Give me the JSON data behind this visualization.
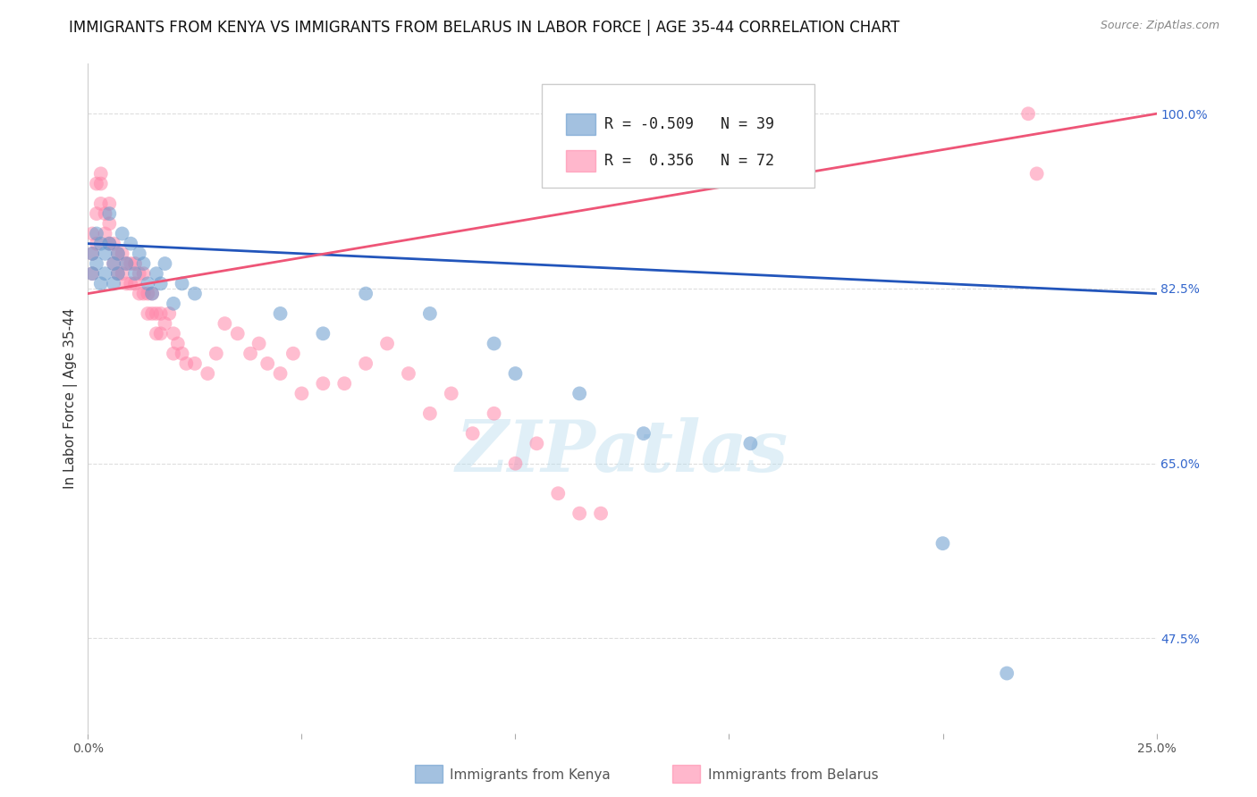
{
  "title": "IMMIGRANTS FROM KENYA VS IMMIGRANTS FROM BELARUS IN LABOR FORCE | AGE 35-44 CORRELATION CHART",
  "source": "Source: ZipAtlas.com",
  "ylabel": "In Labor Force | Age 35-44",
  "xlim": [
    0.0,
    0.25
  ],
  "ylim": [
    0.38,
    1.05
  ],
  "xtick_positions": [
    0.0,
    0.05,
    0.1,
    0.15,
    0.2,
    0.25
  ],
  "xtick_labels": [
    "0.0%",
    "",
    "",
    "",
    "",
    "25.0%"
  ],
  "ytick_vals_right": [
    0.475,
    0.65,
    0.825,
    1.0
  ],
  "ytick_labels_right": [
    "47.5%",
    "65.0%",
    "82.5%",
    "100.0%"
  ],
  "kenya_R": -0.509,
  "kenya_N": 39,
  "belarus_R": 0.356,
  "belarus_N": 72,
  "kenya_color": "#6699CC",
  "belarus_color": "#FF88AA",
  "kenya_line_color": "#2255BB",
  "belarus_line_color": "#EE5577",
  "kenya_x": [
    0.001,
    0.001,
    0.002,
    0.002,
    0.003,
    0.003,
    0.004,
    0.004,
    0.005,
    0.005,
    0.006,
    0.006,
    0.007,
    0.007,
    0.008,
    0.009,
    0.01,
    0.011,
    0.012,
    0.013,
    0.014,
    0.015,
    0.016,
    0.017,
    0.018,
    0.02,
    0.022,
    0.025,
    0.045,
    0.055,
    0.065,
    0.08,
    0.095,
    0.1,
    0.115,
    0.13,
    0.155,
    0.2,
    0.215
  ],
  "kenya_y": [
    0.86,
    0.84,
    0.88,
    0.85,
    0.87,
    0.83,
    0.86,
    0.84,
    0.9,
    0.87,
    0.85,
    0.83,
    0.86,
    0.84,
    0.88,
    0.85,
    0.87,
    0.84,
    0.86,
    0.85,
    0.83,
    0.82,
    0.84,
    0.83,
    0.85,
    0.81,
    0.83,
    0.82,
    0.8,
    0.78,
    0.82,
    0.8,
    0.77,
    0.74,
    0.72,
    0.68,
    0.67,
    0.57,
    0.44
  ],
  "belarus_x": [
    0.001,
    0.001,
    0.001,
    0.002,
    0.002,
    0.002,
    0.003,
    0.003,
    0.003,
    0.004,
    0.004,
    0.005,
    0.005,
    0.005,
    0.006,
    0.006,
    0.007,
    0.007,
    0.008,
    0.008,
    0.009,
    0.009,
    0.01,
    0.01,
    0.011,
    0.011,
    0.012,
    0.012,
    0.013,
    0.013,
    0.014,
    0.014,
    0.015,
    0.015,
    0.016,
    0.016,
    0.017,
    0.017,
    0.018,
    0.019,
    0.02,
    0.02,
    0.021,
    0.022,
    0.023,
    0.025,
    0.028,
    0.03,
    0.032,
    0.035,
    0.038,
    0.04,
    0.042,
    0.045,
    0.048,
    0.05,
    0.055,
    0.06,
    0.065,
    0.07,
    0.075,
    0.08,
    0.085,
    0.09,
    0.095,
    0.1,
    0.105,
    0.11,
    0.115,
    0.12,
    0.22,
    0.222
  ],
  "belarus_y": [
    0.84,
    0.86,
    0.88,
    0.87,
    0.9,
    0.93,
    0.91,
    0.93,
    0.94,
    0.9,
    0.88,
    0.87,
    0.89,
    0.91,
    0.85,
    0.87,
    0.84,
    0.86,
    0.84,
    0.86,
    0.83,
    0.85,
    0.83,
    0.85,
    0.83,
    0.85,
    0.84,
    0.82,
    0.84,
    0.82,
    0.8,
    0.82,
    0.8,
    0.82,
    0.8,
    0.78,
    0.8,
    0.78,
    0.79,
    0.8,
    0.78,
    0.76,
    0.77,
    0.76,
    0.75,
    0.75,
    0.74,
    0.76,
    0.79,
    0.78,
    0.76,
    0.77,
    0.75,
    0.74,
    0.76,
    0.72,
    0.73,
    0.73,
    0.75,
    0.77,
    0.74,
    0.7,
    0.72,
    0.68,
    0.7,
    0.65,
    0.67,
    0.62,
    0.6,
    0.6,
    1.0,
    0.94
  ],
  "kenya_trend_y0": 0.87,
  "kenya_trend_y1": 0.82,
  "belarus_trend_y0": 0.82,
  "belarus_trend_y1": 1.0,
  "watermark": "ZIPatlas",
  "background_color": "#ffffff",
  "grid_color": "#dddddd",
  "title_fontsize": 12,
  "axis_label_fontsize": 11,
  "tick_fontsize": 10,
  "legend_fontsize": 12,
  "source_fontsize": 9
}
